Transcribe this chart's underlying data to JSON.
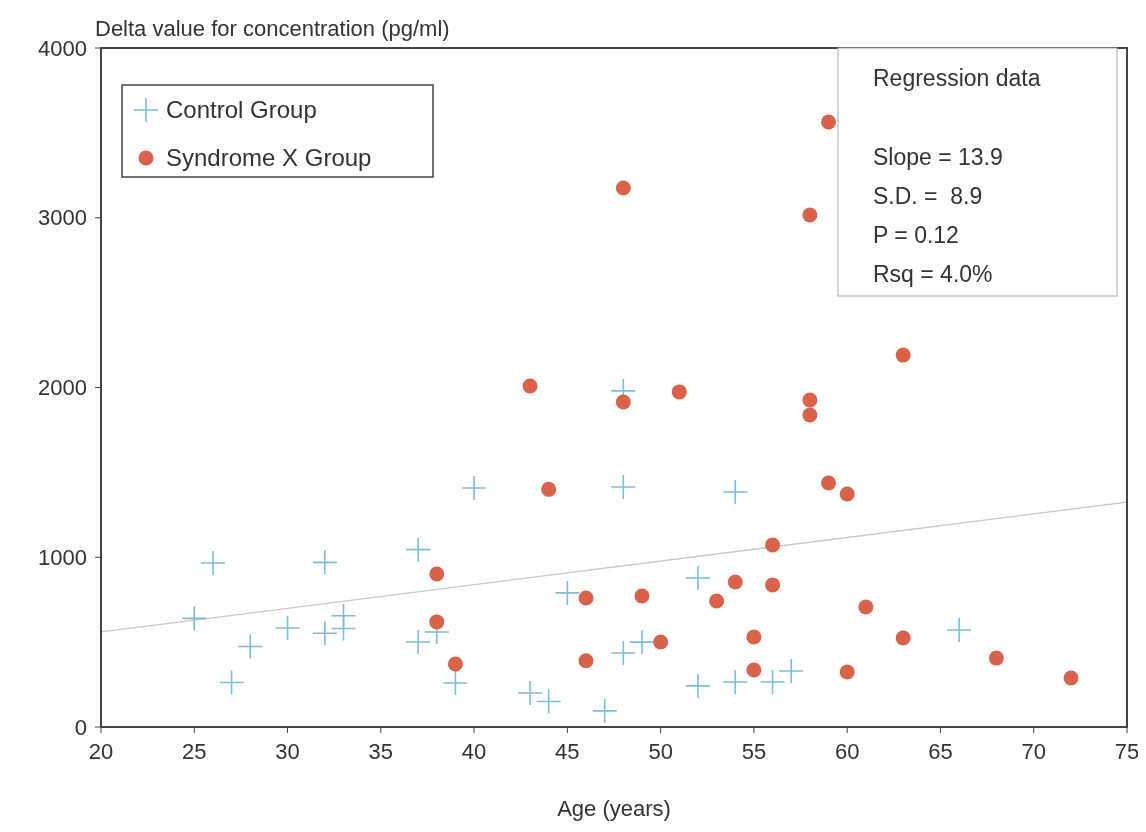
{
  "chart_data": {
    "type": "scatter",
    "ylabel": "Delta value for concentration (pg/ml)",
    "xlabel": "Age (years)",
    "xlim": [
      20,
      75
    ],
    "xticks": [
      20,
      25,
      30,
      35,
      40,
      45,
      50,
      55,
      60,
      65,
      70,
      75
    ],
    "ylim": [
      0,
      4000
    ],
    "yticks": [
      0,
      1000,
      2000,
      3000,
      4000
    ],
    "grid": false,
    "legend": "top left",
    "annotations": [
      "Regression data",
      "Slope = 13.9",
      "S.D. =  8.9",
      "P = 0.12",
      "Rsq = 4.0%"
    ],
    "series": [
      {
        "name": "Control Group",
        "color": "#7fbcd8",
        "marker": "cross",
        "x": [
          25,
          26,
          27,
          28,
          30,
          32,
          32,
          33,
          33,
          37,
          37,
          38,
          39,
          40,
          43,
          44,
          45,
          47,
          48,
          48,
          48,
          49,
          52,
          52,
          54,
          54,
          56,
          57,
          66
        ],
        "values": [
          640,
          966,
          262,
          474,
          583,
          970,
          552,
          655,
          580,
          1045,
          501,
          560,
          259,
          1408,
          200,
          150,
          790,
          95,
          1980,
          1414,
          436,
          500,
          878,
          242,
          1384,
          265,
          265,
          330,
          571
        ]
      },
      {
        "name": "Syndrome X Group",
        "color": "#d9634a",
        "marker": "circle",
        "x": [
          38,
          38,
          39,
          43,
          44,
          46,
          46,
          48,
          48,
          49,
          50,
          51,
          53,
          54,
          55,
          55,
          56,
          56,
          58,
          58,
          58,
          59,
          59,
          60,
          60,
          61,
          63,
          63,
          68,
          72
        ],
        "values": [
          901,
          619,
          371,
          2009,
          1400,
          760,
          390,
          3175,
          1915,
          772,
          501,
          1974,
          742,
          854,
          530,
          336,
          1072,
          837,
          3016,
          1926,
          1838,
          3564,
          1437,
          1373,
          324,
          707,
          2191,
          524,
          406,
          289
        ]
      },
      {
        "type": "line",
        "color": "#c8c8c8",
        "marker": "none",
        "x": [
          20,
          75
        ],
        "values": [
          560,
          1325
        ]
      }
    ]
  }
}
